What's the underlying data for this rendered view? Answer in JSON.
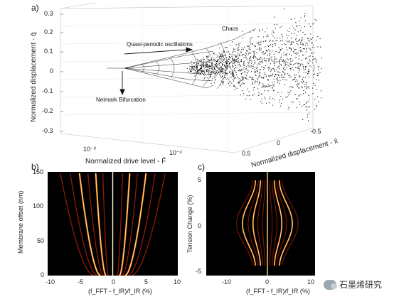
{
  "figure": {
    "panel_a": {
      "letter": "a)",
      "y_axis_label": "Normalized displacement - q̄",
      "y_ticks": [
        "0.3",
        "0.2",
        "0.1",
        "0",
        "-0.1",
        "-0.2",
        "-0.3"
      ],
      "x_axis_label": "Normalized drive level - F̄",
      "x_ticks": [
        "10⁻³",
        "10⁻²"
      ],
      "z_axis_label": "Normalized displacement - x̄",
      "z_ticks": [
        "0.5",
        "0",
        "-0.5"
      ],
      "annotations": {
        "chaos": "Chaos",
        "quasi": "Quasi-periodic oscillations",
        "neimark": "Neimark Bifurcation"
      }
    },
    "panel_b": {
      "letter": "b)",
      "y_axis_label": "Membrane offset (nm)",
      "y_ticks": [
        "150",
        "100",
        "50",
        "0"
      ],
      "x_ticks": [
        "-10",
        "-5",
        "0",
        "5",
        "10"
      ],
      "x_axis_label": "(f_FFT - f_IR)/f_IR (%)"
    },
    "panel_c": {
      "letter": "c)",
      "y_axis_label": "Tension Change (%)",
      "y_ticks": [
        "5",
        "0",
        "-5"
      ],
      "x_ticks": [
        "-10",
        "0",
        "10"
      ],
      "x_axis_label": "(f_FFT - f_IR)/f_IR (%)"
    },
    "watermark": "石墨烯研究"
  },
  "colors": {
    "heat_bg": "#000000",
    "line_hot": "#ff7a1a",
    "line_core": "#fff2c0"
  }
}
